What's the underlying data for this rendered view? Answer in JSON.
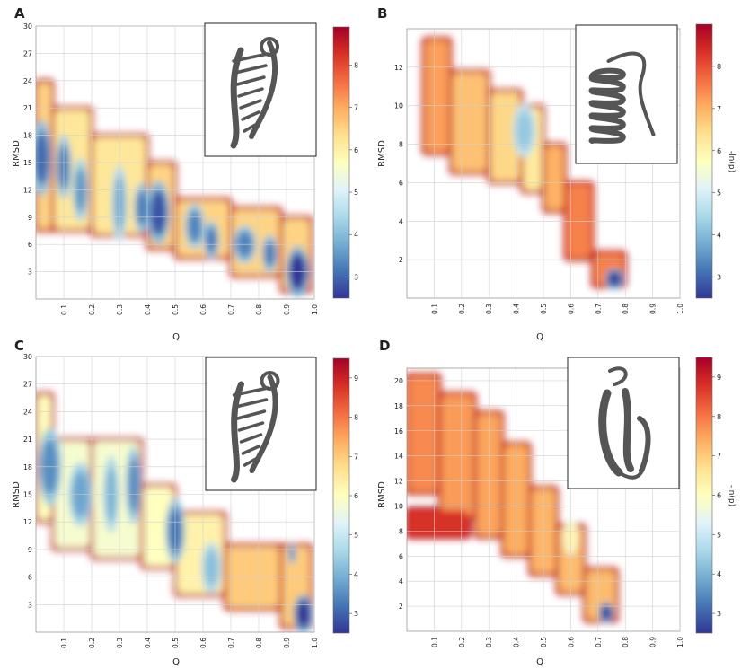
{
  "colors": {
    "colormap": [
      "#313695",
      "#4575b4",
      "#74add1",
      "#abd9e9",
      "#e0f3f8",
      "#ffffbf",
      "#fee090",
      "#fdae61",
      "#f46d43",
      "#d73027",
      "#a50026"
    ],
    "grid": "#d0d0d0",
    "structure": "#555555"
  },
  "chart_data": [
    {
      "panel": "A",
      "type": "heatmap",
      "xlabel": "Q",
      "ylabel": "RMSD",
      "colorbar_label": "",
      "xlim": [
        0,
        1.0
      ],
      "ylim": [
        0,
        30
      ],
      "xticks": [
        "0.1",
        "0.2",
        "0.3",
        "0.4",
        "0.5",
        "0.6",
        "0.7",
        "0.8",
        "0.9",
        "1.0"
      ],
      "yticks": [
        "3",
        "6",
        "9",
        "12",
        "15",
        "18",
        "21",
        "24",
        "27",
        "30"
      ],
      "colorbar_ticks": [
        "3",
        "4",
        "5",
        "6",
        "7",
        "8"
      ],
      "colorbar_range": [
        2.5,
        8.9
      ],
      "inset_icon": "rna-hairpin-structure",
      "regions": [
        {
          "q": [
            0.0,
            0.06
          ],
          "rmsd": [
            7.5,
            24
          ],
          "level": 6.5
        },
        {
          "q": [
            0.06,
            0.2
          ],
          "rmsd": [
            7.5,
            21
          ],
          "level": 6.2
        },
        {
          "q": [
            0.2,
            0.4
          ],
          "rmsd": [
            7.0,
            18.0
          ],
          "level": 6.2
        },
        {
          "q": [
            0.4,
            0.5
          ],
          "rmsd": [
            5.5,
            15.0
          ],
          "level": 6.5
        },
        {
          "q": [
            0.5,
            0.7
          ],
          "rmsd": [
            4.5,
            11.0
          ],
          "level": 6.5
        },
        {
          "q": [
            0.7,
            0.88
          ],
          "rmsd": [
            2.5,
            10.0
          ],
          "level": 6.5
        },
        {
          "q": [
            0.88,
            0.99
          ],
          "rmsd": [
            0.8,
            9.0
          ],
          "level": 6.5
        }
      ],
      "wells": [
        {
          "q": 0.02,
          "rmsd": 15.5,
          "sq": 0.025,
          "sr": 3.0,
          "level": 3.0
        },
        {
          "q": 0.1,
          "rmsd": 14.5,
          "sq": 0.02,
          "sr": 2.5,
          "level": 3.2
        },
        {
          "q": 0.16,
          "rmsd": 12.0,
          "sq": 0.02,
          "sr": 2.5,
          "level": 3.5
        },
        {
          "q": 0.3,
          "rmsd": 10.5,
          "sq": 0.02,
          "sr": 3.0,
          "level": 3.8
        },
        {
          "q": 0.38,
          "rmsd": 10.0,
          "sq": 0.02,
          "sr": 2.0,
          "level": 3.2
        },
        {
          "q": 0.44,
          "rmsd": 9.5,
          "sq": 0.03,
          "sr": 2.5,
          "level": 2.8
        },
        {
          "q": 0.57,
          "rmsd": 8.0,
          "sq": 0.025,
          "sr": 1.8,
          "level": 3.3
        },
        {
          "q": 0.63,
          "rmsd": 6.5,
          "sq": 0.02,
          "sr": 1.5,
          "level": 3.2
        },
        {
          "q": 0.75,
          "rmsd": 6.0,
          "sq": 0.03,
          "sr": 1.5,
          "level": 3.3
        },
        {
          "q": 0.84,
          "rmsd": 5.0,
          "sq": 0.02,
          "sr": 1.5,
          "level": 3.2
        },
        {
          "q": 0.94,
          "rmsd": 3.0,
          "sq": 0.03,
          "sr": 2.0,
          "level": 2.5
        }
      ]
    },
    {
      "panel": "B",
      "type": "heatmap",
      "xlabel": "Q",
      "ylabel": "RMSD",
      "colorbar_label": "-ln(p)",
      "xlim": [
        0,
        1.0
      ],
      "ylim": [
        0,
        14
      ],
      "xticks": [
        "0.1",
        "0.2",
        "0.3",
        "0.4",
        "0.5",
        "0.6",
        "0.7",
        "0.8",
        "0.9",
        "1.0"
      ],
      "yticks": [
        "2",
        "4",
        "6",
        "8",
        "10",
        "12"
      ],
      "colorbar_ticks": [
        "3",
        "4",
        "5",
        "6",
        "7",
        "8"
      ],
      "colorbar_range": [
        2.5,
        9.0
      ],
      "inset_icon": "helical-peptide-structure",
      "regions": [
        {
          "q": [
            0.06,
            0.16
          ],
          "rmsd": [
            7.5,
            13.5
          ],
          "level": 7.2
        },
        {
          "q": [
            0.16,
            0.3
          ],
          "rmsd": [
            6.5,
            11.8
          ],
          "level": 6.8
        },
        {
          "q": [
            0.3,
            0.42
          ],
          "rmsd": [
            6.0,
            10.8
          ],
          "level": 6.5
        },
        {
          "q": [
            0.42,
            0.5
          ],
          "rmsd": [
            5.5,
            10.0
          ],
          "level": 6.2
        },
        {
          "q": [
            0.5,
            0.58
          ],
          "rmsd": [
            4.5,
            8.0
          ],
          "level": 7.0
        },
        {
          "q": [
            0.58,
            0.68
          ],
          "rmsd": [
            2.0,
            6.0
          ],
          "level": 7.5
        },
        {
          "q": [
            0.68,
            0.8
          ],
          "rmsd": [
            0.6,
            2.4
          ],
          "level": 7.5
        }
      ],
      "wells": [
        {
          "q": 0.43,
          "rmsd": 8.7,
          "sq": 0.03,
          "sr": 1.0,
          "level": 4.2
        },
        {
          "q": 0.76,
          "rmsd": 1.0,
          "sq": 0.025,
          "sr": 0.4,
          "level": 2.6
        }
      ]
    },
    {
      "panel": "C",
      "type": "heatmap",
      "xlabel": "Q",
      "ylabel": "RMSD",
      "colorbar_label": "",
      "xlim": [
        0,
        1.0
      ],
      "ylim": [
        0,
        30
      ],
      "xticks": [
        "0.1",
        "0.2",
        "0.3",
        "0.4",
        "0.5",
        "0.6",
        "0.7",
        "0.8",
        "0.9",
        "1.0"
      ],
      "yticks": [
        "3",
        "6",
        "9",
        "12",
        "15",
        "18",
        "21",
        "24",
        "27",
        "30"
      ],
      "colorbar_ticks": [
        "3",
        "4",
        "5",
        "6",
        "7",
        "8",
        "9"
      ],
      "colorbar_range": [
        2.5,
        9.5
      ],
      "inset_icon": "rna-hairpin-structure",
      "regions": [
        {
          "q": [
            0.0,
            0.06
          ],
          "rmsd": [
            12.0,
            26.0
          ],
          "level": 6.0
        },
        {
          "q": [
            0.06,
            0.2
          ],
          "rmsd": [
            9.0,
            21.0
          ],
          "level": 5.8
        },
        {
          "q": [
            0.2,
            0.38
          ],
          "rmsd": [
            8.0,
            21.0
          ],
          "level": 5.8
        },
        {
          "q": [
            0.38,
            0.5
          ],
          "rmsd": [
            7.0,
            16.0
          ],
          "level": 6.0
        },
        {
          "q": [
            0.5,
            0.68
          ],
          "rmsd": [
            4.0,
            13.0
          ],
          "level": 6.3
        },
        {
          "q": [
            0.68,
            0.88
          ],
          "rmsd": [
            2.5,
            9.5
          ],
          "level": 7.0
        },
        {
          "q": [
            0.88,
            0.99
          ],
          "rmsd": [
            0.5,
            9.5
          ],
          "level": 7.0
        }
      ],
      "wells": [
        {
          "q": 0.05,
          "rmsd": 18.0,
          "sq": 0.03,
          "sr": 3.0,
          "level": 3.5
        },
        {
          "q": 0.16,
          "rmsd": 15.0,
          "sq": 0.03,
          "sr": 2.5,
          "level": 3.8
        },
        {
          "q": 0.27,
          "rmsd": 15.0,
          "sq": 0.02,
          "sr": 3.0,
          "level": 4.0
        },
        {
          "q": 0.35,
          "rmsd": 16.0,
          "sq": 0.02,
          "sr": 3.0,
          "level": 3.5
        },
        {
          "q": 0.5,
          "rmsd": 11.0,
          "sq": 0.025,
          "sr": 2.5,
          "level": 3.2
        },
        {
          "q": 0.63,
          "rmsd": 7.0,
          "sq": 0.025,
          "sr": 2.0,
          "level": 4.2
        },
        {
          "q": 0.92,
          "rmsd": 8.5,
          "sq": 0.01,
          "sr": 0.8,
          "level": 3.5
        },
        {
          "q": 0.96,
          "rmsd": 2.0,
          "sq": 0.025,
          "sr": 1.5,
          "level": 2.5
        }
      ]
    },
    {
      "panel": "D",
      "type": "heatmap",
      "xlabel": "Q",
      "ylabel": "RMSD",
      "colorbar_label": "-ln(p)",
      "xlim": [
        0,
        1.0
      ],
      "ylim": [
        0,
        21
      ],
      "xticks": [
        "0.1",
        "0.2",
        "0.3",
        "0.4",
        "0.5",
        "0.6",
        "0.7",
        "0.8",
        "0.9",
        "1.0"
      ],
      "yticks": [
        "2",
        "4",
        "6",
        "8",
        "10",
        "12",
        "14",
        "16",
        "18",
        "20"
      ],
      "colorbar_ticks": [
        "3",
        "4",
        "5",
        "6",
        "7",
        "8",
        "9"
      ],
      "colorbar_range": [
        2.5,
        9.5
      ],
      "inset_icon": "beta-hairpin-structure",
      "regions": [
        {
          "q": [
            0.0,
            0.12
          ],
          "rmsd": [
            11.0,
            20.5
          ],
          "level": 7.8
        },
        {
          "q": [
            0.12,
            0.25
          ],
          "rmsd": [
            9.0,
            19.0
          ],
          "level": 7.6
        },
        {
          "q": [
            0.25,
            0.35
          ],
          "rmsd": [
            7.5,
            17.5
          ],
          "level": 7.5
        },
        {
          "q": [
            0.35,
            0.45
          ],
          "rmsd": [
            6.0,
            15.0
          ],
          "level": 7.4
        },
        {
          "q": [
            0.45,
            0.55
          ],
          "rmsd": [
            4.5,
            11.5
          ],
          "level": 7.3
        },
        {
          "q": [
            0.55,
            0.65
          ],
          "rmsd": [
            3.0,
            8.5
          ],
          "level": 7.2
        },
        {
          "q": [
            0.65,
            0.77
          ],
          "rmsd": [
            0.8,
            5.0
          ],
          "level": 7.2
        },
        {
          "q": [
            0.0,
            0.23
          ],
          "rmsd": [
            7.5,
            9.8
          ],
          "level": 8.8
        }
      ],
      "wells": [
        {
          "q": 0.73,
          "rmsd": 1.5,
          "sq": 0.02,
          "sr": 0.6,
          "level": 2.6
        },
        {
          "q": 0.6,
          "rmsd": 7.5,
          "sq": 0.02,
          "sr": 1.0,
          "level": 6.2
        }
      ]
    }
  ],
  "panels": [
    {
      "letter": "A",
      "ylabel": "RMSD",
      "xlabel": "Q",
      "colorbar_label": ""
    },
    {
      "letter": "B",
      "ylabel": "RMSD",
      "xlabel": "Q",
      "colorbar_label": "-ln(p)"
    },
    {
      "letter": "C",
      "ylabel": "RMSD",
      "xlabel": "Q",
      "colorbar_label": ""
    },
    {
      "letter": "D",
      "ylabel": "RMSD",
      "xlabel": "Q",
      "colorbar_label": "-ln(p)"
    }
  ]
}
